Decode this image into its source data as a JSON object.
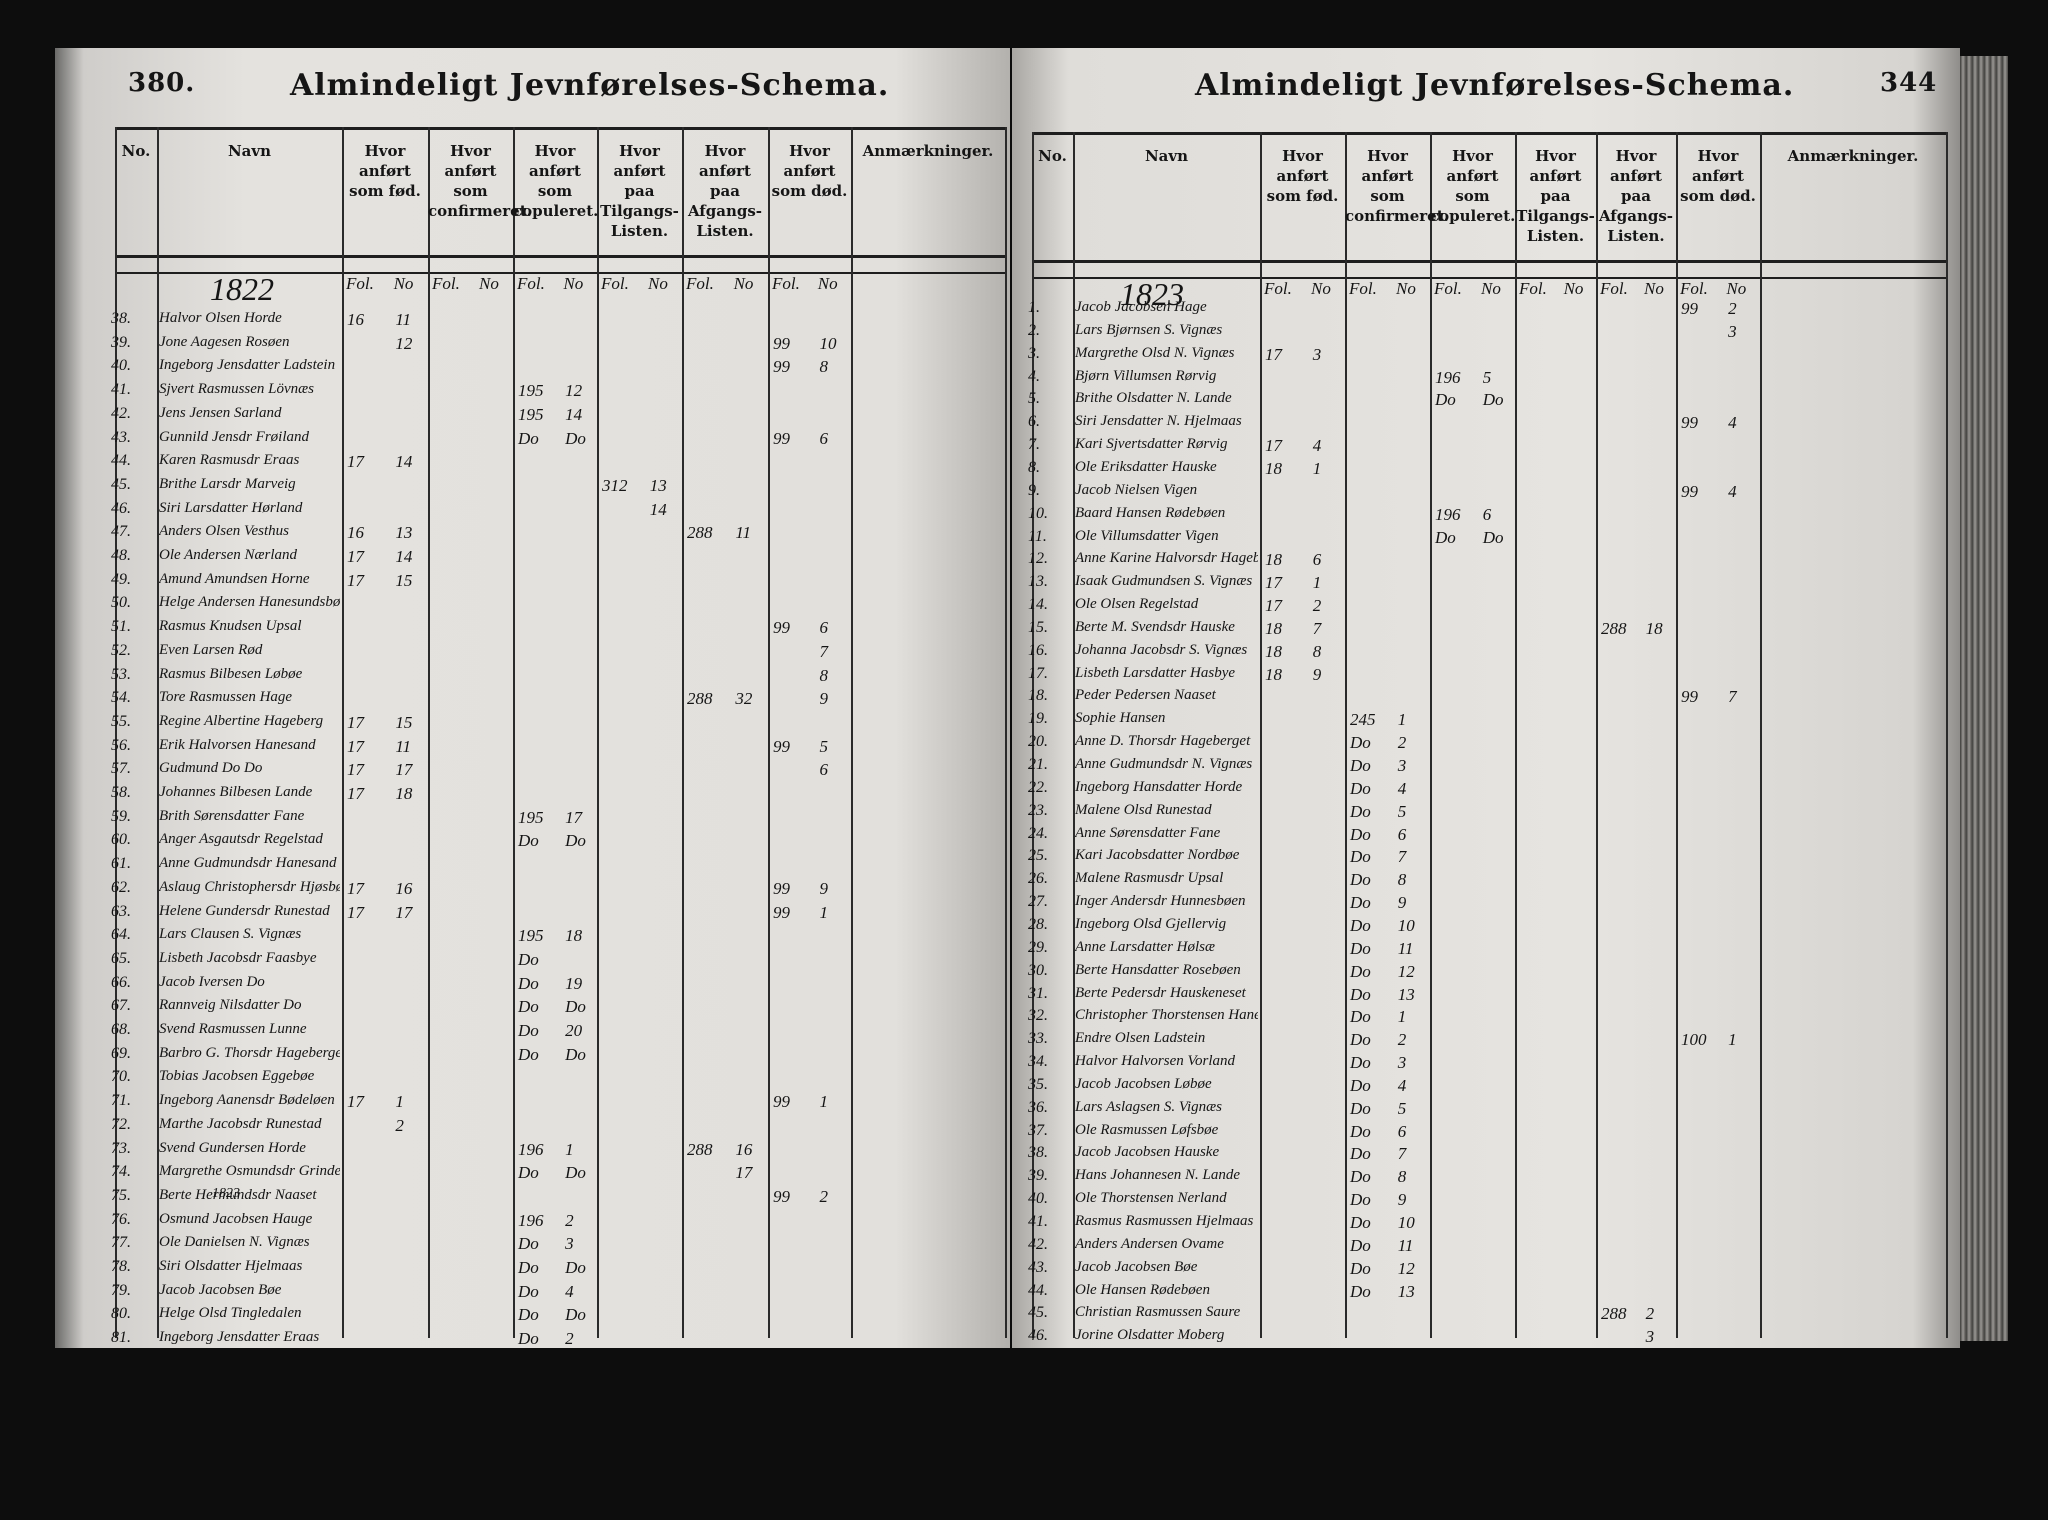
{
  "pages": [
    {
      "page_number": "380.",
      "title": "Almindeligt Jevnførelses-Schema.",
      "headers": [
        "No.",
        "Navn",
        "Hvor anført som fød.",
        "Hvor anført som confirmeret.",
        "Hvor anført som copuleret.",
        "Hvor anført paa Tilgangs-Listen.",
        "Hvor anført paa Afgangs-Listen.",
        "Hvor anført som død.",
        "Anmærkninger."
      ],
      "subheaders": [
        "Fol.",
        "No"
      ],
      "year": "1822",
      "note": "1823",
      "rows": [
        {
          "no": "38.",
          "name": "Halvor Olsen Horde",
          "fod": {
            "fol": "16",
            "no": "11"
          }
        },
        {
          "no": "39.",
          "name": "Jone Aagesen Rosøen",
          "fod": {
            "no": "12"
          },
          "dod": {
            "fol": "99",
            "no": "10"
          }
        },
        {
          "no": "40.",
          "name": "Ingeborg Jensdatter Ladstein",
          "dod": {
            "fol": "99",
            "no": "8"
          }
        },
        {
          "no": "41.",
          "name": "Sjvert Rasmussen Lövnæs",
          "cop": {
            "fol": "195",
            "no": "12"
          }
        },
        {
          "no": "42.",
          "name": "Jens Jensen Sarland",
          "cop": {
            "fol": "195",
            "no": "14"
          }
        },
        {
          "no": "43.",
          "name": "Gunnild Jensdr Frøiland",
          "cop": {
            "fol": "Do",
            "no": "Do"
          },
          "dod": {
            "fol": "99",
            "no": "6"
          }
        },
        {
          "no": "44.",
          "name": "Karen Rasmusdr Eraas",
          "fod": {
            "fol": "17",
            "no": "14"
          }
        },
        {
          "no": "45.",
          "name": "Brithe Larsdr Marveig",
          "tilg": {
            "fol": "312",
            "no": "13"
          }
        },
        {
          "no": "46.",
          "name": "Siri Larsdatter Hørland",
          "tilg": {
            "no": "14"
          }
        },
        {
          "no": "47.",
          "name": "Anders Olsen Vesthus",
          "fod": {
            "fol": "16",
            "no": "13"
          },
          "afg": {
            "fol": "288",
            "no": "11"
          }
        },
        {
          "no": "48.",
          "name": "Ole Andersen Nærland",
          "fod": {
            "fol": "17",
            "no": "14"
          }
        },
        {
          "no": "49.",
          "name": "Amund Amundsen Horne",
          "fod": {
            "fol": "17",
            "no": "15"
          }
        },
        {
          "no": "50.",
          "name": "Helge Andersen Hanesundsbøen"
        },
        {
          "no": "51.",
          "name": "Rasmus Knudsen Upsal",
          "dod": {
            "fol": "99",
            "no": "6"
          }
        },
        {
          "no": "52.",
          "name": "Even Larsen Rød",
          "dod": {
            "no": "7"
          }
        },
        {
          "no": "53.",
          "name": "Rasmus Bilbesen Løbøe",
          "dod": {
            "no": "8"
          }
        },
        {
          "no": "54.",
          "name": "Tore Rasmussen Hage",
          "afg": {
            "fol": "288",
            "no": "32"
          },
          "dod": {
            "no": "9"
          }
        },
        {
          "no": "55.",
          "name": "Regine Albertine Hageberg",
          "fod": {
            "fol": "17",
            "no": "15"
          }
        },
        {
          "no": "56.",
          "name": "Erik Halvorsen Hanesand",
          "fod": {
            "fol": "17",
            "no": "11"
          },
          "dod": {
            "fol": "99",
            "no": "5"
          }
        },
        {
          "no": "57.",
          "name": "Gudmund Do Do",
          "fod": {
            "fol": "17",
            "no": "17"
          },
          "dod": {
            "no": "6"
          }
        },
        {
          "no": "58.",
          "name": "Johannes Bilbesen Lande",
          "fod": {
            "fol": "17",
            "no": "18"
          }
        },
        {
          "no": "59.",
          "name": "Brith Sørensdatter Fane",
          "cop": {
            "fol": "195",
            "no": "17"
          }
        },
        {
          "no": "60.",
          "name": "Anger Asgautsdr Regelstad",
          "cop": {
            "fol": "Do",
            "no": "Do"
          }
        },
        {
          "no": "61.",
          "name": "Anne Gudmundsdr Hanesand"
        },
        {
          "no": "62.",
          "name": "Aslaug Christophersdr Hjøsbøe",
          "fod": {
            "fol": "17",
            "no": "16"
          },
          "dod": {
            "fol": "99",
            "no": "9"
          }
        },
        {
          "no": "63.",
          "name": "Helene Gundersdr Runestad",
          "fod": {
            "fol": "17",
            "no": "17"
          },
          "dod": {
            "fol": "99",
            "no": "1"
          }
        },
        {
          "no": "64.",
          "name": "Lars Clausen S. Vignæs",
          "cop": {
            "fol": "195",
            "no": "18"
          }
        },
        {
          "no": "65.",
          "name": "Lisbeth Jacobsdr Faasbye",
          "cop": {
            "fol": "Do"
          }
        },
        {
          "no": "66.",
          "name": "Jacob Iversen Do",
          "cop": {
            "fol": "Do",
            "no": "19"
          }
        },
        {
          "no": "67.",
          "name": "Rannveig Nilsdatter Do",
          "cop": {
            "fol": "Do",
            "no": "Do"
          }
        },
        {
          "no": "68.",
          "name": "Svend Rasmussen Lunne",
          "cop": {
            "fol": "Do",
            "no": "20"
          }
        },
        {
          "no": "69.",
          "name": "Barbro G. Thorsdr Hageberget",
          "cop": {
            "fol": "Do",
            "no": "Do"
          }
        },
        {
          "no": "70.",
          "name": "Tobias Jacobsen Eggebøe"
        },
        {
          "no": "71.",
          "name": "Ingeborg Aanensdr Bødeløen",
          "fod": {
            "fol": "17",
            "no": "1"
          },
          "dod": {
            "fol": "99",
            "no": "1"
          }
        },
        {
          "no": "72.",
          "name": "Marthe Jacobsdr Runestad",
          "fod": {
            "no": "2"
          }
        },
        {
          "no": "73.",
          "name": "Svend Gundersen Horde",
          "cop": {
            "fol": "196",
            "no": "1"
          },
          "afg": {
            "fol": "288",
            "no": "16"
          }
        },
        {
          "no": "74.",
          "name": "Margrethe Osmundsdr Grinde",
          "cop": {
            "fol": "Do",
            "no": "Do"
          },
          "afg": {
            "no": "17"
          }
        },
        {
          "no": "75.",
          "name": "Berte Hermundsdr Naaset",
          "dod": {
            "fol": "99",
            "no": "2"
          }
        },
        {
          "no": "76.",
          "name": "Osmund Jacobsen Hauge",
          "cop": {
            "fol": "196",
            "no": "2"
          }
        },
        {
          "no": "77.",
          "name": "Ole Danielsen N. Vignæs",
          "cop": {
            "fol": "Do",
            "no": "3"
          }
        },
        {
          "no": "78.",
          "name": "Siri Olsdatter Hjelmaas",
          "cop": {
            "fol": "Do",
            "no": "Do"
          }
        },
        {
          "no": "79.",
          "name": "Jacob Jacobsen Bøe",
          "cop": {
            "fol": "Do",
            "no": "4"
          }
        },
        {
          "no": "80.",
          "name": "Helge Olsd Tingledalen",
          "cop": {
            "fol": "Do",
            "no": "Do"
          }
        },
        {
          "no": "81.",
          "name": "Ingeborg Jensdatter Eraas",
          "cop": {
            "fol": "Do",
            "no": "2"
          }
        }
      ]
    },
    {
      "page_number": "344",
      "title": "Almindeligt Jevnførelses-Schema.",
      "headers": [
        "No.",
        "Navn",
        "Hvor anført som fød.",
        "Hvor anført som confirmeret.",
        "Hvor anført som copuleret.",
        "Hvor anført paa Tilgangs-Listen.",
        "Hvor anført paa Afgangs-Listen.",
        "Hvor anført som død.",
        "Anmærkninger."
      ],
      "subheaders": [
        "Fol.",
        "No"
      ],
      "year": "1823",
      "rows": [
        {
          "no": "1.",
          "name": "Jacob Jacobsen Hage",
          "dod": {
            "fol": "99",
            "no": "2"
          }
        },
        {
          "no": "2.",
          "name": "Lars Bjørnsen S. Vignæs",
          "dod": {
            "no": "3"
          }
        },
        {
          "no": "3.",
          "name": "Margrethe Olsd N. Vignæs",
          "fod": {
            "fol": "17",
            "no": "3"
          }
        },
        {
          "no": "4.",
          "name": "Bjørn Villumsen Rørvig",
          "cop": {
            "fol": "196",
            "no": "5"
          }
        },
        {
          "no": "5.",
          "name": "Brithe Olsdatter N. Lande",
          "cop": {
            "fol": "Do",
            "no": "Do"
          }
        },
        {
          "no": "6.",
          "name": "Siri Jensdatter N. Hjelmaas",
          "dod": {
            "fol": "99",
            "no": "4"
          }
        },
        {
          "no": "7.",
          "name": "Kari Sjvertsdatter Rørvig",
          "fod": {
            "fol": "17",
            "no": "4"
          }
        },
        {
          "no": "8.",
          "name": "Ole Eriksdatter Hauske",
          "fod": {
            "fol": "18",
            "no": "1"
          }
        },
        {
          "no": "9.",
          "name": "Jacob Nielsen Vigen",
          "dod": {
            "fol": "99",
            "no": "4"
          }
        },
        {
          "no": "10.",
          "name": "Baard Hansen Rødebøen",
          "cop": {
            "fol": "196",
            "no": "6"
          }
        },
        {
          "no": "11.",
          "name": "Ole Villumsdatter Vigen",
          "cop": {
            "fol": "Do",
            "no": "Do"
          }
        },
        {
          "no": "12.",
          "name": "Anne Karine Halvorsdr Hageberg",
          "fod": {
            "fol": "18",
            "no": "6"
          }
        },
        {
          "no": "13.",
          "name": "Isaak Gudmundsen S. Vignæs",
          "fod": {
            "fol": "17",
            "no": "1"
          }
        },
        {
          "no": "14.",
          "name": "Ole Olsen Regelstad",
          "fod": {
            "fol": "17",
            "no": "2"
          }
        },
        {
          "no": "15.",
          "name": "Berte M. Svendsdr Hauske",
          "fod": {
            "fol": "18",
            "no": "7"
          },
          "afg": {
            "fol": "288",
            "no": "18"
          }
        },
        {
          "no": "16.",
          "name": "Johanna Jacobsdr S. Vignæs",
          "fod": {
            "fol": "18",
            "no": "8"
          }
        },
        {
          "no": "17.",
          "name": "Lisbeth Larsdatter Hasbye",
          "fod": {
            "fol": "18",
            "no": "9"
          }
        },
        {
          "no": "18.",
          "name": "Peder Pedersen Naaset",
          "dod": {
            "fol": "99",
            "no": "7"
          }
        },
        {
          "no": "19.",
          "name": "Sophie Hansen",
          "conf": {
            "fol": "245",
            "no": "1"
          }
        },
        {
          "no": "20.",
          "name": "Anne D. Thorsdr Hageberget",
          "conf": {
            "fol": "Do",
            "no": "2"
          }
        },
        {
          "no": "21.",
          "name": "Anne Gudmundsdr N. Vignæs",
          "conf": {
            "fol": "Do",
            "no": "3"
          }
        },
        {
          "no": "22.",
          "name": "Ingeborg Hansdatter Horde",
          "conf": {
            "fol": "Do",
            "no": "4"
          }
        },
        {
          "no": "23.",
          "name": "Malene Olsd Runestad",
          "conf": {
            "fol": "Do",
            "no": "5"
          }
        },
        {
          "no": "24.",
          "name": "Anne Sørensdatter Fane",
          "conf": {
            "fol": "Do",
            "no": "6"
          }
        },
        {
          "no": "25.",
          "name": "Kari Jacobsdatter Nordbøe",
          "conf": {
            "fol": "Do",
            "no": "7"
          }
        },
        {
          "no": "26.",
          "name": "Malene Rasmusdr Upsal",
          "conf": {
            "fol": "Do",
            "no": "8"
          }
        },
        {
          "no": "27.",
          "name": "Inger Andersdr Hunnesbøen",
          "conf": {
            "fol": "Do",
            "no": "9"
          }
        },
        {
          "no": "28.",
          "name": "Ingeborg Olsd Gjellervig",
          "conf": {
            "fol": "Do",
            "no": "10"
          }
        },
        {
          "no": "29.",
          "name": "Anne Larsdatter Hølsæ",
          "conf": {
            "fol": "Do",
            "no": "11"
          }
        },
        {
          "no": "30.",
          "name": "Berte Hansdatter Rosebøen",
          "conf": {
            "fol": "Do",
            "no": "12"
          }
        },
        {
          "no": "31.",
          "name": "Berte Pedersdr Hauskeneset",
          "conf": {
            "fol": "Do",
            "no": "13"
          }
        },
        {
          "no": "32.",
          "name": "Christopher Thorstensen Hanesand",
          "conf": {
            "fol": "Do",
            "no": "1"
          }
        },
        {
          "no": "33.",
          "name": "Endre Olsen Ladstein",
          "conf": {
            "fol": "Do",
            "no": "2"
          },
          "dod": {
            "fol": "100",
            "no": "1"
          }
        },
        {
          "no": "34.",
          "name": "Halvor Halvorsen Vorland",
          "conf": {
            "fol": "Do",
            "no": "3"
          }
        },
        {
          "no": "35.",
          "name": "Jacob Jacobsen Løbøe",
          "conf": {
            "fol": "Do",
            "no": "4"
          }
        },
        {
          "no": "36.",
          "name": "Lars Aslagsen S. Vignæs",
          "conf": {
            "fol": "Do",
            "no": "5"
          }
        },
        {
          "no": "37.",
          "name": "Ole Rasmussen Løfsbøe",
          "conf": {
            "fol": "Do",
            "no": "6"
          }
        },
        {
          "no": "38.",
          "name": "Jacob Jacobsen Hauske",
          "conf": {
            "fol": "Do",
            "no": "7"
          }
        },
        {
          "no": "39.",
          "name": "Hans Johannesen N. Lande",
          "conf": {
            "fol": "Do",
            "no": "8"
          }
        },
        {
          "no": "40.",
          "name": "Ole Thorstensen Nerland",
          "conf": {
            "fol": "Do",
            "no": "9"
          }
        },
        {
          "no": "41.",
          "name": "Rasmus Rasmussen Hjelmaas",
          "conf": {
            "fol": "Do",
            "no": "10"
          }
        },
        {
          "no": "42.",
          "name": "Anders Andersen Ovame",
          "conf": {
            "fol": "Do",
            "no": "11"
          }
        },
        {
          "no": "43.",
          "name": "Jacob Jacobsen Bøe",
          "conf": {
            "fol": "Do",
            "no": "12"
          }
        },
        {
          "no": "44.",
          "name": "Ole Hansen Rødebøen",
          "conf": {
            "fol": "Do",
            "no": "13"
          }
        },
        {
          "no": "45.",
          "name": "Christian Rasmussen Saure",
          "afg": {
            "fol": "288",
            "no": "2"
          }
        },
        {
          "no": "46.",
          "name": "Jorine Olsdatter Moberg",
          "afg": {
            "no": "3"
          }
        }
      ]
    }
  ]
}
